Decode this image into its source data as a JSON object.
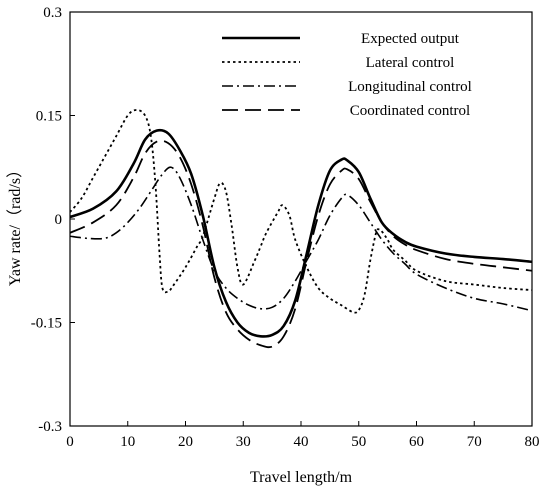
{
  "chart_data": {
    "type": "line",
    "title": "",
    "xlabel": "Travel length/m",
    "ylabel": "Yaw rate/（rad/s）",
    "xlim": [
      0,
      80
    ],
    "ylim": [
      -0.3,
      0.3
    ],
    "xticks": [
      0,
      10,
      20,
      30,
      40,
      50,
      60,
      70,
      80
    ],
    "yticks": [
      -0.3,
      -0.15,
      0,
      0.15,
      0.3
    ],
    "ytick_labels": [
      "-0.3",
      "-0.15",
      "0",
      "0.15",
      "0.3"
    ],
    "grid": false,
    "legend_position": "top-right",
    "series": [
      {
        "name": "Expected output",
        "style": "solid",
        "x": [
          0,
          4,
          8,
          11,
          13,
          15,
          17,
          19,
          21,
          23,
          25,
          27,
          29,
          31,
          33,
          35,
          37,
          39,
          41,
          43,
          45,
          47,
          48,
          50,
          52,
          54,
          56,
          58,
          60,
          65,
          70,
          75,
          80
        ],
        "y": [
          0.003,
          0.015,
          0.04,
          0.08,
          0.115,
          0.128,
          0.124,
          0.1,
          0.065,
          0.005,
          -0.07,
          -0.12,
          -0.15,
          -0.165,
          -0.17,
          -0.168,
          -0.155,
          -0.118,
          -0.05,
          0.02,
          0.07,
          0.086,
          0.085,
          0.068,
          0.03,
          -0.005,
          -0.022,
          -0.033,
          -0.04,
          -0.05,
          -0.055,
          -0.058,
          -0.062
        ]
      },
      {
        "name": "Lateral control",
        "style": "dotted",
        "x": [
          0,
          2,
          4,
          6,
          8,
          10,
          11.5,
          13,
          14,
          14.8,
          15.5,
          16,
          17,
          18,
          20,
          22,
          23,
          25,
          26,
          27,
          28,
          29,
          30,
          32,
          33,
          34,
          36,
          36.8,
          38,
          39,
          41,
          43,
          45,
          47,
          49,
          50,
          51,
          52,
          53,
          53.5,
          54,
          55,
          56,
          58,
          60,
          65,
          70,
          75,
          80
        ],
        "y": [
          0.01,
          0.03,
          0.06,
          0.09,
          0.12,
          0.15,
          0.158,
          0.15,
          0.12,
          0.05,
          -0.05,
          -0.1,
          -0.105,
          -0.095,
          -0.07,
          -0.04,
          -0.025,
          0.03,
          0.052,
          0.04,
          -0.01,
          -0.07,
          -0.095,
          -0.06,
          -0.04,
          -0.02,
          0.01,
          0.02,
          0.005,
          -0.03,
          -0.07,
          -0.1,
          -0.115,
          -0.125,
          -0.135,
          -0.132,
          -0.11,
          -0.06,
          -0.02,
          -0.015,
          -0.018,
          -0.03,
          -0.045,
          -0.06,
          -0.075,
          -0.09,
          -0.095,
          -0.1,
          -0.103
        ]
      },
      {
        "name": "Longitudinal control",
        "style": "dashdot",
        "x": [
          0,
          3,
          6,
          8,
          10,
          12,
          14,
          16,
          17.5,
          19,
          21,
          23,
          25,
          27,
          29,
          31,
          33,
          35,
          37,
          39,
          41,
          43,
          45,
          47,
          48,
          50,
          52,
          54,
          56,
          58,
          60,
          65,
          70,
          75,
          80
        ],
        "y": [
          -0.025,
          -0.028,
          -0.028,
          -0.02,
          -0.005,
          0.015,
          0.04,
          0.065,
          0.075,
          0.06,
          0.02,
          -0.03,
          -0.075,
          -0.1,
          -0.115,
          -0.125,
          -0.13,
          -0.128,
          -0.115,
          -0.09,
          -0.06,
          -0.03,
          0.005,
          0.03,
          0.035,
          0.02,
          -0.005,
          -0.03,
          -0.05,
          -0.065,
          -0.08,
          -0.1,
          -0.115,
          -0.123,
          -0.133
        ]
      },
      {
        "name": "Coordinated control",
        "style": "dashed",
        "x": [
          0,
          4,
          8,
          11,
          13,
          15,
          17,
          19,
          21,
          23,
          25,
          27,
          29,
          31,
          33,
          35,
          37,
          39,
          41,
          43,
          45,
          47,
          48,
          50,
          52,
          54,
          56,
          58,
          60,
          65,
          70,
          75,
          80
        ],
        "y": [
          -0.02,
          -0.005,
          0.02,
          0.06,
          0.095,
          0.112,
          0.11,
          0.09,
          0.05,
          -0.01,
          -0.085,
          -0.135,
          -0.16,
          -0.175,
          -0.183,
          -0.185,
          -0.17,
          -0.13,
          -0.06,
          0.005,
          0.05,
          0.07,
          0.072,
          0.058,
          0.025,
          -0.005,
          -0.025,
          -0.037,
          -0.045,
          -0.058,
          -0.065,
          -0.07,
          -0.075
        ]
      }
    ]
  }
}
